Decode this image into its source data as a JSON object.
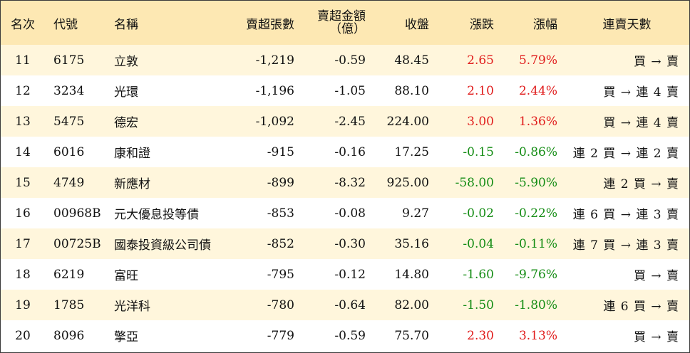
{
  "headers": {
    "rank": "名次",
    "code": "代號",
    "name": "名稱",
    "net_sell_lots": "賣超張數",
    "net_sell_amount_line1": "賣超金額",
    "net_sell_amount_line2": "（億）",
    "close": "收盤",
    "change": "漲跌",
    "pct": "漲幅",
    "streak": "連賣天數"
  },
  "colors": {
    "header_bg": "#fde8b3",
    "odd_row_bg": "#fff6dc",
    "up": "#e01b1b",
    "down": "#138c13"
  },
  "rows": [
    {
      "rank": "11",
      "code": "6175",
      "name": "立敦",
      "lots": "-1,219",
      "amount": "-0.59",
      "close": "48.45",
      "change": "2.65",
      "pct": "5.79%",
      "dir": "up",
      "streak": "買 → 賣"
    },
    {
      "rank": "12",
      "code": "3234",
      "name": "光環",
      "lots": "-1,196",
      "amount": "-1.05",
      "close": "88.10",
      "change": "2.10",
      "pct": "2.44%",
      "dir": "up",
      "streak": "買 → 連 4 賣"
    },
    {
      "rank": "13",
      "code": "5475",
      "name": "德宏",
      "lots": "-1,092",
      "amount": "-2.45",
      "close": "224.00",
      "change": "3.00",
      "pct": "1.36%",
      "dir": "up",
      "streak": "買 → 連 4 賣"
    },
    {
      "rank": "14",
      "code": "6016",
      "name": "康和證",
      "lots": "-915",
      "amount": "-0.16",
      "close": "17.25",
      "change": "-0.15",
      "pct": "-0.86%",
      "dir": "down",
      "streak": "連 2 買 → 連 2 賣"
    },
    {
      "rank": "15",
      "code": "4749",
      "name": "新應材",
      "lots": "-899",
      "amount": "-8.32",
      "close": "925.00",
      "change": "-58.00",
      "pct": "-5.90%",
      "dir": "down",
      "streak": "連 2 買 → 賣"
    },
    {
      "rank": "16",
      "code": "00968B",
      "name": "元大優息投等債",
      "lots": "-853",
      "amount": "-0.08",
      "close": "9.27",
      "change": "-0.02",
      "pct": "-0.22%",
      "dir": "down",
      "streak": "連 6 買 → 連 3 賣"
    },
    {
      "rank": "17",
      "code": "00725B",
      "name": "國泰投資級公司債",
      "lots": "-852",
      "amount": "-0.30",
      "close": "35.16",
      "change": "-0.04",
      "pct": "-0.11%",
      "dir": "down",
      "streak": "連 7 買 → 連 3 賣"
    },
    {
      "rank": "18",
      "code": "6219",
      "name": "富旺",
      "lots": "-795",
      "amount": "-0.12",
      "close": "14.80",
      "change": "-1.60",
      "pct": "-9.76%",
      "dir": "down",
      "streak": "買 → 賣"
    },
    {
      "rank": "19",
      "code": "1785",
      "name": "光洋科",
      "lots": "-780",
      "amount": "-0.64",
      "close": "82.00",
      "change": "-1.50",
      "pct": "-1.80%",
      "dir": "down",
      "streak": "連 6 買 → 賣"
    },
    {
      "rank": "20",
      "code": "8096",
      "name": "擎亞",
      "lots": "-779",
      "amount": "-0.59",
      "close": "75.70",
      "change": "2.30",
      "pct": "3.13%",
      "dir": "up",
      "streak": "買 → 賣"
    }
  ]
}
